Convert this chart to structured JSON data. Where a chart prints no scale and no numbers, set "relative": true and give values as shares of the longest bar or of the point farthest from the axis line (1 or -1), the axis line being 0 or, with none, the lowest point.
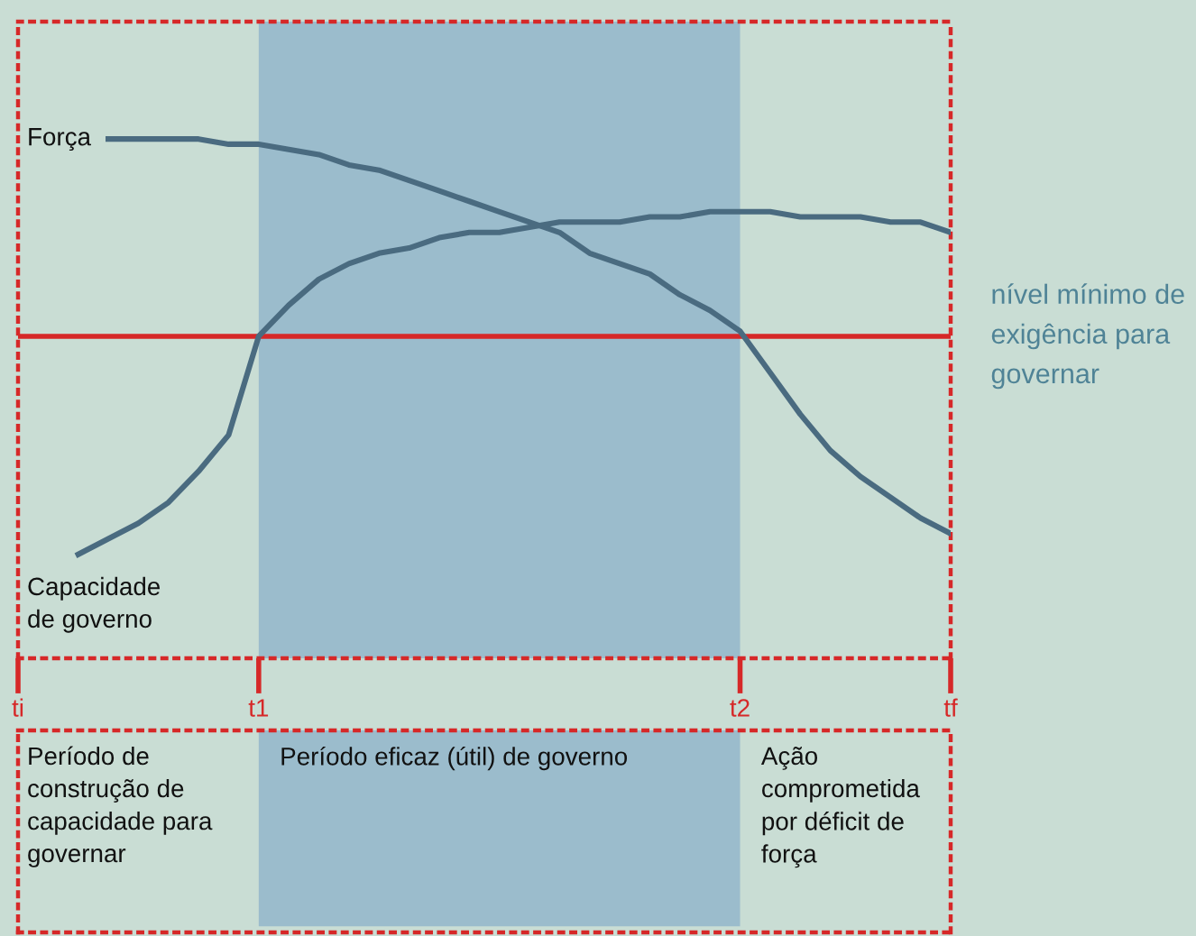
{
  "chart_data": {
    "type": "line",
    "relative": true,
    "categories": [
      "ti",
      null,
      null,
      null,
      null,
      null,
      null,
      null,
      "t1",
      null,
      null,
      null,
      null,
      null,
      null,
      null,
      null,
      null,
      null,
      null,
      null,
      null,
      null,
      null,
      "t2",
      null,
      null,
      null,
      null,
      null,
      null,
      "tf"
    ],
    "series": [
      {
        "name": "Força",
        "color": "#4a6b80",
        "values": [
          null,
          null,
          null,
          1,
          1,
          1,
          1,
          0.99,
          0.99,
          0.98,
          0.97,
          0.95,
          0.94,
          0.92,
          0.9,
          0.88,
          0.86,
          0.84,
          0.82,
          0.78,
          0.76,
          0.74,
          0.7,
          0.67,
          0.63,
          0.55,
          0.47,
          0.4,
          0.35,
          0.31,
          0.27,
          0.24
        ]
      },
      {
        "name": "Capacidade\nde governo",
        "color": "#4a6b80",
        "values": [
          null,
          null,
          0.2,
          0.23,
          0.26,
          0.3,
          0.36,
          0.43,
          0.62,
          0.68,
          0.73,
          0.76,
          0.78,
          0.79,
          0.81,
          0.82,
          0.82,
          0.83,
          0.84,
          0.84,
          0.84,
          0.85,
          0.85,
          0.86,
          0.86,
          0.86,
          0.85,
          0.85,
          0.85,
          0.84,
          0.84,
          0.82
        ]
      }
    ],
    "ref_lines": [
      {
        "axis": "y",
        "value": 0.62,
        "label": "nível mínimo de\nexigência para\ngovernar",
        "color": "#d62828"
      }
    ],
    "bands": [
      {
        "axis": "x",
        "from": "t1",
        "to": "t2",
        "color": "#9bbccc"
      }
    ],
    "annotations": [
      "Período de\nconstrução de\ncapacidade para\ngovernar",
      "Período eficaz (útil) de governo",
      "Ação\ncomprometida\npor déficit de\nforça"
    ],
    "grid": false,
    "legend": false,
    "line_style": "solid",
    "marker": "none"
  }
}
